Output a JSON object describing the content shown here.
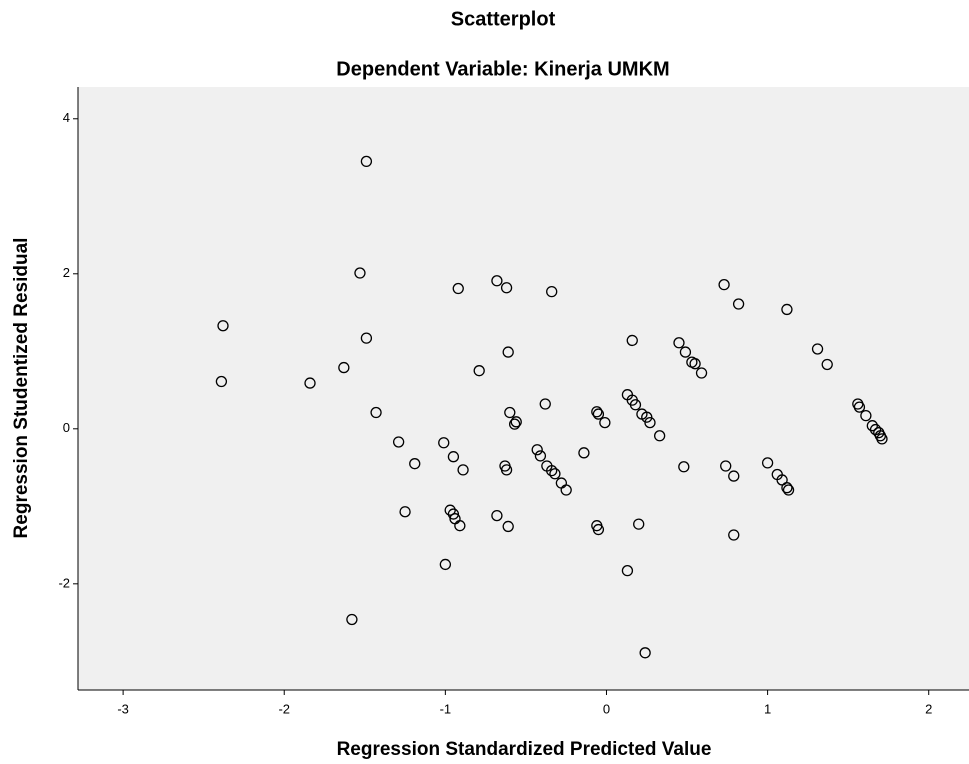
{
  "chart_data": {
    "type": "scatter",
    "title": "Scatterplot",
    "subtitle": "Dependent Variable: Kinerja UMKM",
    "x_label": "Regression Standardized Predicted Value",
    "y_label": "Regression Studentized Residual",
    "xlim": [
      -3.28,
      2.25
    ],
    "ylim": [
      -3.37,
      4.41
    ],
    "xticks": [
      -3,
      -2,
      -1,
      0,
      1,
      2
    ],
    "yticks": [
      -2,
      0,
      2,
      4
    ],
    "grid": false,
    "color": "#000000",
    "background": "#f0f0f0",
    "x": [
      -1.49,
      -1.53,
      -1.49,
      -2.38,
      -2.39,
      -1.84,
      -1.63,
      -1.43,
      -1.29,
      -1.19,
      -1.25,
      -1.58,
      -1.01,
      -0.95,
      -0.89,
      -0.92,
      -0.68,
      -0.62,
      -0.34,
      -0.61,
      -0.79,
      -0.6,
      -0.56,
      -0.57,
      -0.38,
      -0.43,
      -0.41,
      -0.37,
      -0.34,
      -0.32,
      -0.28,
      -0.25,
      -0.63,
      -0.62,
      -0.68,
      -0.61,
      -0.97,
      -0.95,
      -0.94,
      -0.91,
      -1.0,
      -0.14,
      -0.06,
      -0.05,
      -0.06,
      -0.05,
      -0.01,
      0.16,
      0.13,
      0.16,
      0.18,
      0.22,
      0.25,
      0.27,
      0.33,
      0.2,
      0.13,
      0.24,
      0.45,
      0.49,
      0.53,
      0.55,
      0.59,
      0.48,
      0.73,
      0.82,
      0.74,
      0.79,
      0.79,
      1.0,
      1.06,
      1.09,
      1.12,
      1.13,
      1.12,
      1.31,
      1.37,
      1.56,
      1.57,
      1.61,
      1.65,
      1.67,
      1.69,
      1.7,
      1.71
    ],
    "values": [
      3.45,
      2.01,
      1.17,
      1.33,
      0.61,
      0.59,
      0.79,
      0.21,
      -0.17,
      -0.45,
      -1.07,
      -2.46,
      -0.18,
      -0.36,
      -0.53,
      1.81,
      1.91,
      1.82,
      1.77,
      0.99,
      0.75,
      0.21,
      0.09,
      0.06,
      0.32,
      -0.27,
      -0.35,
      -0.48,
      -0.54,
      -0.58,
      -0.7,
      -0.79,
      -0.48,
      -0.53,
      -1.12,
      -1.26,
      -1.05,
      -1.1,
      -1.16,
      -1.25,
      -1.75,
      -0.31,
      -1.25,
      -1.3,
      0.22,
      0.19,
      0.08,
      1.14,
      0.44,
      0.37,
      0.31,
      0.19,
      0.15,
      0.08,
      -0.09,
      -1.23,
      -1.83,
      -2.89,
      1.11,
      0.99,
      0.86,
      0.84,
      0.72,
      -0.49,
      1.86,
      1.61,
      -0.48,
      -0.61,
      -1.37,
      -0.44,
      -0.59,
      -0.66,
      -0.76,
      -0.79,
      1.54,
      1.03,
      0.83,
      0.32,
      0.28,
      0.17,
      0.04,
      -0.01,
      -0.05,
      -0.09,
      -0.13
    ]
  }
}
